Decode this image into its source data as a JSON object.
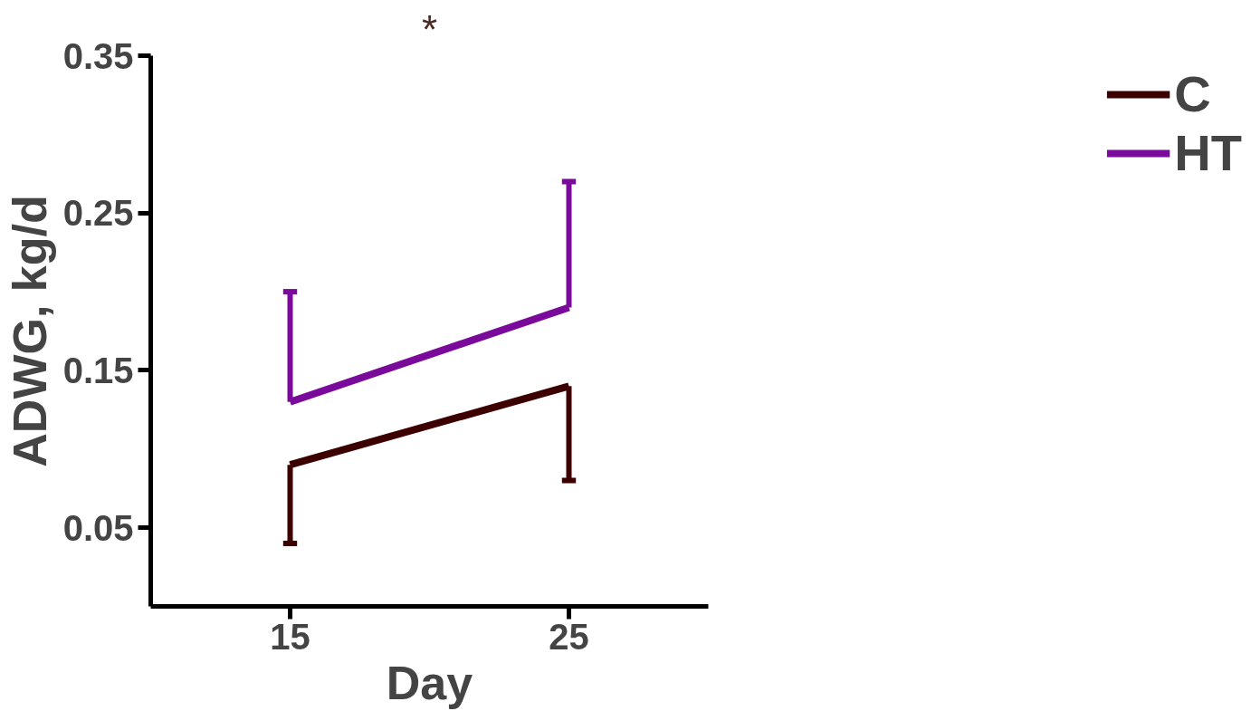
{
  "chart_data": {
    "type": "line",
    "xlabel": "Day",
    "ylabel": "ADWG, kg/d",
    "x": [
      15,
      25
    ],
    "series": [
      {
        "name": "C",
        "color": "#3d0000",
        "values": [
          0.09,
          0.14
        ],
        "errors": [
          [
            0.04,
            0.09
          ],
          [
            0.08,
            0.14
          ]
        ]
      },
      {
        "name": "HT",
        "color": "#7a0a9a",
        "values": [
          0.13,
          0.19
        ],
        "errors": [
          [
            0.13,
            0.2
          ],
          [
            0.19,
            0.27
          ]
        ]
      }
    ],
    "xlim": [
      10,
      30
    ],
    "xticks": [
      15,
      25
    ],
    "ylim": [
      0,
      0.35
    ],
    "yticks": [
      0.05,
      0.15,
      0.25,
      0.35
    ],
    "annotations": [
      "*"
    ],
    "grid": false,
    "legend": "top right",
    "marker": "none",
    "line_style": "solid"
  }
}
